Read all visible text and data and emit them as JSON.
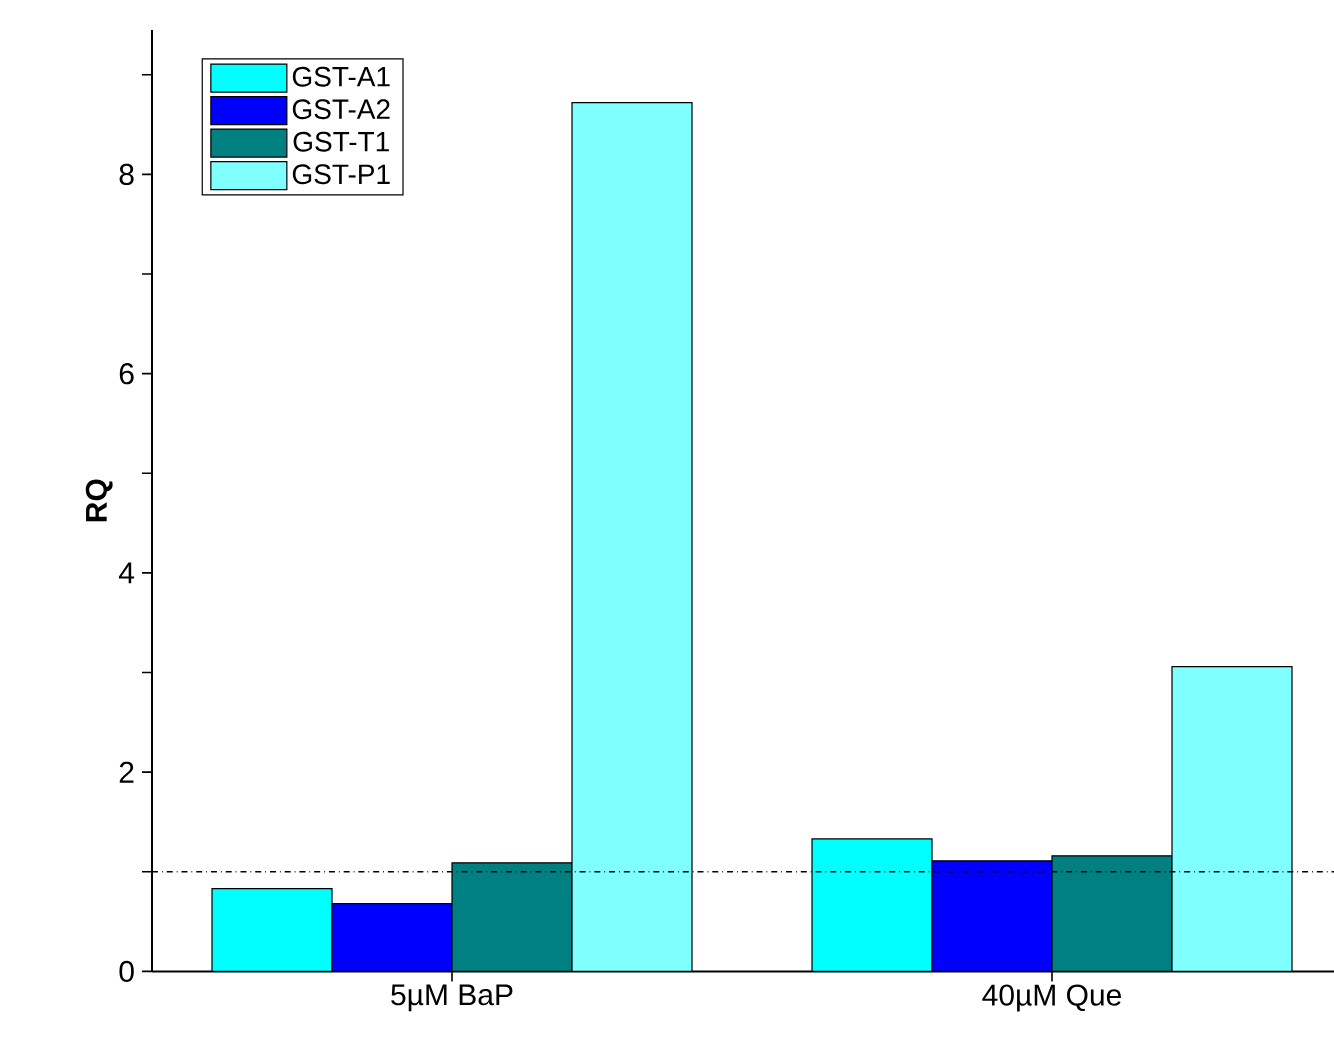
{
  "chart_data": {
    "type": "bar",
    "ylabel": "RQ",
    "categories": [
      "5µM BaP",
      "40µM Que"
    ],
    "series": [
      {
        "name": "GST-A1",
        "color": "#00ffff",
        "values": [
          0.83,
          1.33
        ]
      },
      {
        "name": "GST-A2",
        "color": "#0000ff",
        "values": [
          0.68,
          1.11
        ]
      },
      {
        "name": "GST-T1",
        "color": "#008080",
        "values": [
          1.09,
          1.16
        ]
      },
      {
        "name": "GST-P1",
        "color": "#80ffff",
        "values": [
          8.72,
          3.06
        ]
      }
    ],
    "ylim": [
      0,
      9.45
    ],
    "yticks": [
      0,
      {
        "value": 1,
        "label": null
      },
      2,
      {
        "value": 3,
        "label": null
      },
      4,
      {
        "value": 5,
        "label": null
      },
      6,
      {
        "value": 7,
        "label": null
      },
      8,
      {
        "value": 9,
        "label": null
      }
    ],
    "ref_lines": [
      {
        "axis": "y",
        "value": 1,
        "line_style": "dashdotted",
        "color": "#000000"
      }
    ],
    "legend": "top left",
    "grid": false
  }
}
